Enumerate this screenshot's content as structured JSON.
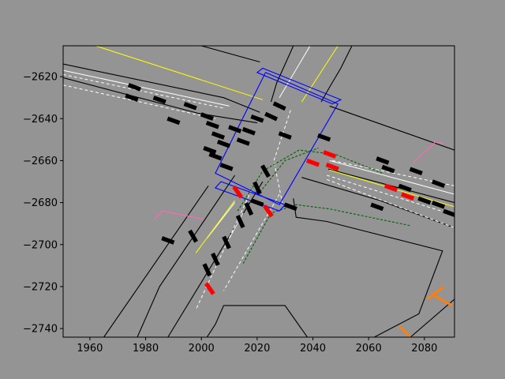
{
  "chart_data": {
    "type": "scatter",
    "title": "",
    "xlabel": "",
    "ylabel": "",
    "xlim": [
      1950.4,
      2090.8
    ],
    "ylim": [
      -2744.1,
      -2605.3
    ],
    "grid": false,
    "legend": "none",
    "x_ticks": [
      1960,
      1980,
      2000,
      2020,
      2040,
      2060,
      2080
    ],
    "y_ticks": [
      -2620,
      -2640,
      -2660,
      -2680,
      -2700,
      -2720,
      -2740
    ],
    "colors": {
      "background": "#939493",
      "axes": "#939493",
      "road_edge": "#000000",
      "lane_line": "#ffffff",
      "center_line": "#ffff00",
      "crosswalk_box": "#0000ff",
      "planned_path": "#006400",
      "vehicle": "#000000",
      "ego_vehicle": "#ff0000",
      "pedestrian_path": "#ff69b4",
      "marker": "#ff7f0e"
    },
    "road_edges": [
      [
        [
          1950.4,
          -2614
        ],
        [
          2008,
          -2630
        ],
        [
          2021,
          -2637
        ]
      ],
      [
        [
          1950.4,
          -2620.5
        ],
        [
          1999,
          -2637.5
        ],
        [
          2020,
          -2642
        ]
      ],
      [
        [
          2000,
          -2605.3
        ],
        [
          2021,
          -2613
        ]
      ],
      [
        [
          2033,
          -2605.3
        ],
        [
          2027,
          -2623
        ],
        [
          2025,
          -2632
        ]
      ],
      [
        [
          2054,
          -2605.3
        ],
        [
          2050,
          -2616
        ],
        [
          2046,
          -2625
        ],
        [
          2043,
          -2632
        ]
      ],
      [
        [
          2046,
          -2634
        ],
        [
          2090.8,
          -2655
        ]
      ],
      [
        [
          2045.5,
          -2664
        ],
        [
          2090.8,
          -2680
        ]
      ],
      [
        [
          2036,
          -2668
        ],
        [
          2064,
          -2679
        ],
        [
          2090.8,
          -2692
        ]
      ],
      [
        [
          2002.5,
          -2672
        ],
        [
          1965,
          -2744.1
        ]
      ],
      [
        [
          2012,
          -2667
        ],
        [
          1985,
          -2720
        ],
        [
          1977,
          -2744.1
        ]
      ],
      [
        [
          2022,
          -2670
        ],
        [
          1988,
          -2744.1
        ]
      ],
      [
        [
          2033,
          -2678
        ],
        [
          2034,
          -2687
        ],
        [
          2045,
          -2689
        ],
        [
          2086.5,
          -2703
        ],
        [
          2078,
          -2733
        ],
        [
          2062,
          -2744.1
        ]
      ],
      [
        [
          2002,
          -2744.1
        ],
        [
          2005,
          -2738
        ],
        [
          2008,
          -2729
        ],
        [
          2030,
          -2729
        ],
        [
          2038,
          -2744.1
        ]
      ],
      [
        [
          2090.8,
          -2726
        ],
        [
          2075,
          -2744.1
        ]
      ]
    ],
    "lane_lines": [
      [
        [
          1950.4,
          -2617
        ],
        [
          2010,
          -2634
        ]
      ],
      [
        [
          2039,
          -2605.3
        ],
        [
          2028,
          -2630
        ]
      ],
      [
        [
          2046,
          -2660
        ],
        [
          2090.8,
          -2676
        ]
      ],
      [
        [
          2012,
          -2680
        ],
        [
          2002,
          -2697
        ]
      ],
      [
        [
          2015,
          -2685
        ],
        [
          2010,
          -2697
        ]
      ]
    ],
    "center_lines": [
      [
        [
          1962,
          -2605.3
        ],
        [
          2022,
          -2631
        ]
      ],
      [
        [
          2049,
          -2605.3
        ],
        [
          2036,
          -2632
        ]
      ],
      [
        [
          2046,
          -2664.5
        ],
        [
          2090.8,
          -2682
        ]
      ],
      [
        [
          2012,
          -2679
        ],
        [
          1998,
          -2704
        ]
      ]
    ],
    "dashed_lane_lines": [
      [
        [
          1950.4,
          -2624
        ],
        [
          2005,
          -2640
        ]
      ],
      [
        [
          1950.4,
          -2619
        ],
        [
          2008,
          -2635
        ]
      ],
      [
        [
          2032,
          -2636
        ],
        [
          2026,
          -2660
        ],
        [
          2029,
          -2680
        ]
      ],
      [
        [
          2045,
          -2667
        ],
        [
          2090.8,
          -2686
        ]
      ],
      [
        [
          2045,
          -2669
        ],
        [
          2090.8,
          -2692
        ]
      ],
      [
        [
          2047,
          -2660
        ],
        [
          2090.8,
          -2672
        ]
      ],
      [
        [
          2028,
          -2676
        ],
        [
          2008,
          -2722
        ]
      ],
      [
        [
          2018,
          -2674
        ],
        [
          1998,
          -2731
        ]
      ]
    ],
    "crosswalk_boxes": [
      [
        [
          2023,
          -2618
        ],
        [
          2049,
          -2633
        ],
        [
          2028,
          -2681
        ],
        [
          2005,
          -2666
        ]
      ],
      [
        [
          2022,
          -2616
        ],
        [
          2050,
          -2631
        ],
        [
          2047,
          -2633
        ],
        [
          2020,
          -2618
        ]
      ],
      [
        [
          2007,
          -2670
        ],
        [
          2030,
          -2681
        ],
        [
          2028,
          -2684
        ],
        [
          2005,
          -2673
        ]
      ]
    ],
    "planned_paths": [
      [
        [
          2013,
          -2684
        ],
        [
          2022,
          -2665
        ],
        [
          2035,
          -2655
        ],
        [
          2048,
          -2657
        ],
        [
          2065,
          -2666
        ]
      ],
      [
        [
          2015,
          -2709
        ],
        [
          2025,
          -2685
        ],
        [
          2034,
          -2681
        ],
        [
          2046,
          -2683
        ],
        [
          2075,
          -2691
        ]
      ],
      [
        [
          2021,
          -2675
        ],
        [
          2030,
          -2660
        ],
        [
          2042,
          -2654
        ]
      ]
    ],
    "vehicles": [
      {
        "x": 1976,
        "y": -2625,
        "angle": -20
      },
      {
        "x": 1975,
        "y": -2630,
        "angle": -20
      },
      {
        "x": 1985,
        "y": -2631,
        "angle": -20
      },
      {
        "x": 1990,
        "y": -2641,
        "angle": -20
      },
      {
        "x": 1996,
        "y": -2634,
        "angle": -20
      },
      {
        "x": 2002,
        "y": -2639,
        "angle": -20
      },
      {
        "x": 2004,
        "y": -2643,
        "angle": -20
      },
      {
        "x": 2006,
        "y": -2648,
        "angle": -20
      },
      {
        "x": 2012,
        "y": -2645,
        "angle": -20
      },
      {
        "x": 2008,
        "y": -2652,
        "angle": -20
      },
      {
        "x": 2015,
        "y": -2651,
        "angle": -20
      },
      {
        "x": 2017,
        "y": -2646,
        "angle": -20
      },
      {
        "x": 2020,
        "y": -2640,
        "angle": -20
      },
      {
        "x": 2025,
        "y": -2639,
        "angle": -25
      },
      {
        "x": 2028,
        "y": -2634,
        "angle": -25
      },
      {
        "x": 2030,
        "y": -2648,
        "angle": -20
      },
      {
        "x": 2044,
        "y": -2649,
        "angle": -20
      },
      {
        "x": 2065,
        "y": -2660,
        "angle": -20
      },
      {
        "x": 2067,
        "y": -2664,
        "angle": -20
      },
      {
        "x": 2077,
        "y": -2665,
        "angle": -20
      },
      {
        "x": 2085,
        "y": -2671,
        "angle": -20
      },
      {
        "x": 2073,
        "y": -2673,
        "angle": -20
      },
      {
        "x": 2080,
        "y": -2679,
        "angle": -20
      },
      {
        "x": 2085,
        "y": -2681,
        "angle": -20
      },
      {
        "x": 2089,
        "y": -2685,
        "angle": -20
      },
      {
        "x": 2063,
        "y": -2682,
        "angle": -20
      },
      {
        "x": 2032,
        "y": -2682,
        "angle": -20
      },
      {
        "x": 2023,
        "y": -2665,
        "angle": -60
      },
      {
        "x": 2020,
        "y": -2673,
        "angle": -65
      },
      {
        "x": 2017,
        "y": -2683,
        "angle": -65
      },
      {
        "x": 2014,
        "y": -2689,
        "angle": -65
      },
      {
        "x": 2009,
        "y": -2699,
        "angle": -65
      },
      {
        "x": 2005,
        "y": -2707,
        "angle": -65
      },
      {
        "x": 2002,
        "y": -2712,
        "angle": -65
      },
      {
        "x": 1997,
        "y": -2696,
        "angle": -60
      },
      {
        "x": 2003,
        "y": -2655,
        "angle": -20
      },
      {
        "x": 2005,
        "y": -2658,
        "angle": -20
      },
      {
        "x": 1988,
        "y": -2698,
        "angle": -20
      },
      {
        "x": 2009,
        "y": -2663,
        "angle": -20
      },
      {
        "x": 2020,
        "y": -2680,
        "angle": -20
      }
    ],
    "ego_vehicles": [
      {
        "x": 2046,
        "y": -2657,
        "angle": -20
      },
      {
        "x": 2047,
        "y": -2663,
        "angle": -20
      },
      {
        "x": 2040,
        "y": -2661,
        "angle": -20
      },
      {
        "x": 2068,
        "y": -2673,
        "angle": -20
      },
      {
        "x": 2074,
        "y": -2677,
        "angle": -20
      },
      {
        "x": 2013,
        "y": -2675,
        "angle": -55
      },
      {
        "x": 2024,
        "y": -2684,
        "angle": -55
      },
      {
        "x": 2003,
        "y": -2721,
        "angle": -55
      }
    ],
    "pedestrian_paths": [
      [
        [
          1983,
          -2688
        ],
        [
          1986,
          -2684
        ],
        [
          2001,
          -2688
        ]
      ],
      [
        [
          2076,
          -2661
        ],
        [
          2084,
          -2651
        ],
        [
          2087,
          -2652
        ]
      ]
    ],
    "markers": [
      [
        [
          2081,
          -2726
        ],
        [
          2087,
          -2720
        ]
      ],
      [
        [
          2083,
          -2724
        ],
        [
          2090,
          -2729
        ]
      ],
      [
        [
          2071,
          -2739
        ],
        [
          2075,
          -2744
        ]
      ]
    ]
  }
}
